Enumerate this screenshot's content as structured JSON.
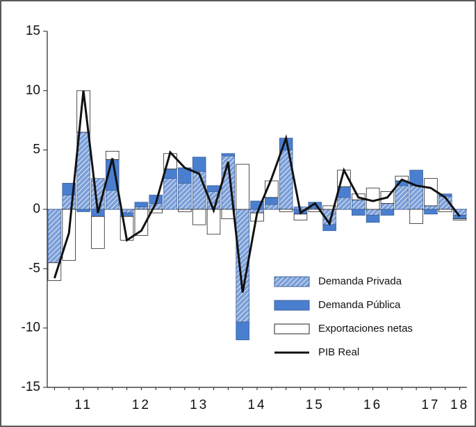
{
  "chart_data": {
    "type": "bar",
    "categories": [
      null,
      null,
      "11",
      null,
      null,
      null,
      "12",
      null,
      null,
      null,
      "13",
      null,
      null,
      null,
      "14",
      null,
      null,
      null,
      "15",
      null,
      null,
      null,
      "16",
      null,
      null,
      null,
      "17",
      null,
      "18"
    ],
    "series": [
      {
        "name": "Demanda Privada",
        "color": "#7b9fd8",
        "hatch": true,
        "values": [
          -4.5,
          1.2,
          6.5,
          2.6,
          1.6,
          -0.3,
          0.2,
          0.5,
          2.6,
          2.2,
          3.2,
          1.5,
          4.5,
          -9.5,
          -0.3,
          0.4,
          5.0,
          0.2,
          0.1,
          -1.3,
          1.0,
          0.8,
          -0.5,
          0.5,
          2.0,
          2.0,
          0.3,
          1.1,
          -0.5
        ]
      },
      {
        "name": "Demanda Pública",
        "color": "#4a7fd0",
        "values": [
          0,
          1.0,
          -0.2,
          -0.6,
          2.6,
          -0.3,
          0.4,
          0.7,
          0.8,
          1.3,
          1.2,
          0.5,
          0.2,
          -1.5,
          0.7,
          0.6,
          1.0,
          -0.4,
          0.5,
          -0.5,
          0.9,
          -0.5,
          -0.6,
          -0.5,
          0.4,
          1.3,
          -0.4,
          0.2,
          -0.3
        ]
      },
      {
        "name": "Exportaciones netas",
        "color": "#ffffff",
        "values": [
          -1.5,
          -4.3,
          3.5,
          -2.7,
          0.7,
          -2.0,
          -2.2,
          -0.3,
          1.3,
          -0.2,
          -1.3,
          -2.1,
          -0.8,
          3.8,
          -0.7,
          1.4,
          -0.2,
          -0.5,
          -0.2,
          0.3,
          1.4,
          0.5,
          1.8,
          1.0,
          0.4,
          -1.2,
          2.3,
          -0.2,
          -0.1
        ]
      },
      {
        "name": "PIB Real",
        "color": "#111111",
        "kind": "line",
        "values": [
          -5.8,
          -2.0,
          10.0,
          -0.3,
          4.3,
          -2.6,
          -1.8,
          0.5,
          4.8,
          3.5,
          3.0,
          -0.1,
          4.0,
          -7.0,
          -0.3,
          2.6,
          6.0,
          -0.3,
          0.5,
          -1.2,
          3.3,
          1.0,
          0.7,
          1.0,
          2.5,
          2.0,
          1.8,
          1.0,
          -0.6
        ]
      }
    ],
    "ylim": [
      -15,
      15
    ],
    "yticks": [
      -15,
      -10,
      -5,
      0,
      5,
      10,
      15
    ],
    "legend": "lower-right"
  }
}
